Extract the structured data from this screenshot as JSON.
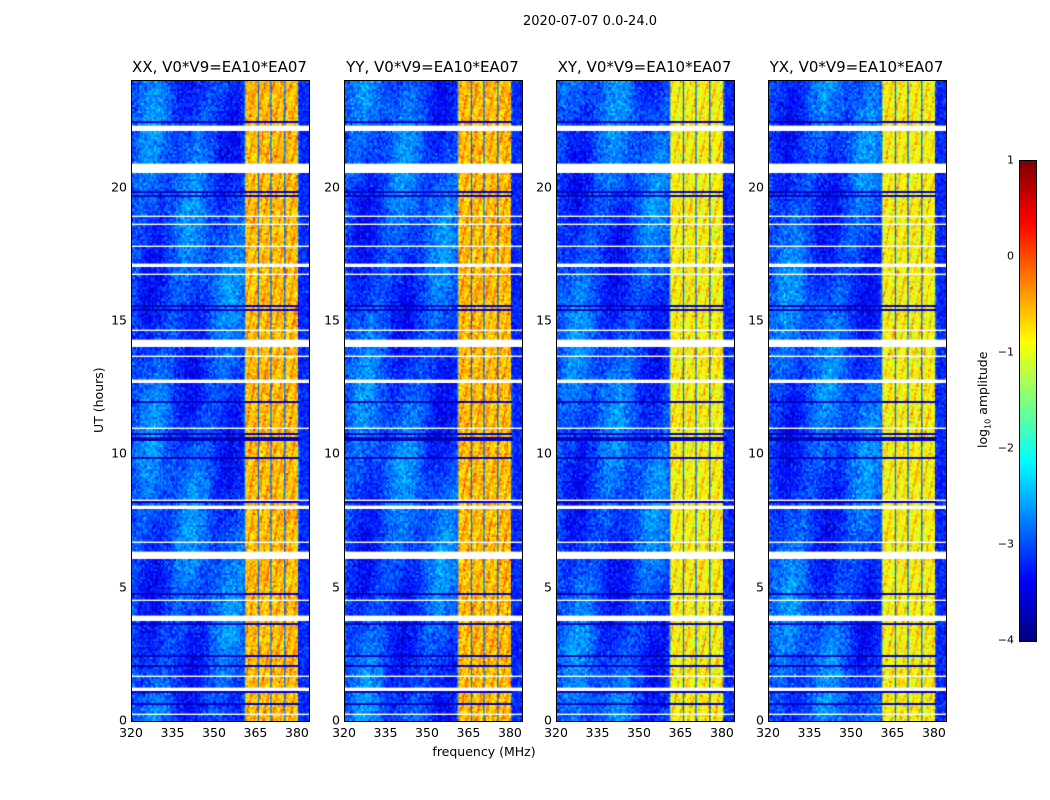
{
  "suptitle": "2020-07-07 0.0-24.0",
  "chart_data": {
    "type": "heatmap",
    "xlabel": "frequency (MHz)",
    "ylabel": "UT (hours)",
    "xlim": [
      320,
      384
    ],
    "ylim": [
      0,
      24
    ],
    "xticks": [
      "320",
      "335",
      "350",
      "365",
      "380"
    ],
    "xtick_values": [
      320,
      335,
      350,
      365,
      380
    ],
    "yticks": [
      "0",
      "5",
      "10",
      "15",
      "20"
    ],
    "ytick_values": [
      0,
      5,
      10,
      15,
      20
    ],
    "panels": [
      {
        "title": "XX, V0*V9=EA10*EA07",
        "band_level": -0.6
      },
      {
        "title": "YY, V0*V9=EA10*EA07",
        "band_level": -0.6
      },
      {
        "title": "XY, V0*V9=EA10*EA07",
        "band_level": -0.9
      },
      {
        "title": "YX, V0*V9=EA10*EA07",
        "band_level": -0.9
      }
    ],
    "bright_band_mhz": [
      360.4,
      380
    ],
    "background_level": -3,
    "flagged_hours_white": [
      [
        20.62,
        20.85
      ],
      [
        14.1,
        14.3
      ],
      [
        3.8,
        3.95
      ],
      [
        6.2,
        6.3
      ],
      [
        12.7,
        12.8
      ],
      [
        17.05,
        17.15
      ],
      [
        8.0,
        8.07
      ],
      [
        22.2,
        22.28
      ],
      [
        1.2,
        1.26
      ]
    ],
    "colorbar": {
      "label_prefix": "log",
      "label_sub": "10",
      "label_suffix": " amplitude",
      "range": [
        -4,
        1
      ],
      "ticks": [
        "1",
        "0",
        "−1",
        "−2",
        "−3",
        "−4"
      ],
      "tick_values": [
        1,
        0,
        -1,
        -2,
        -3,
        -4
      ],
      "colormap": "jet"
    }
  }
}
